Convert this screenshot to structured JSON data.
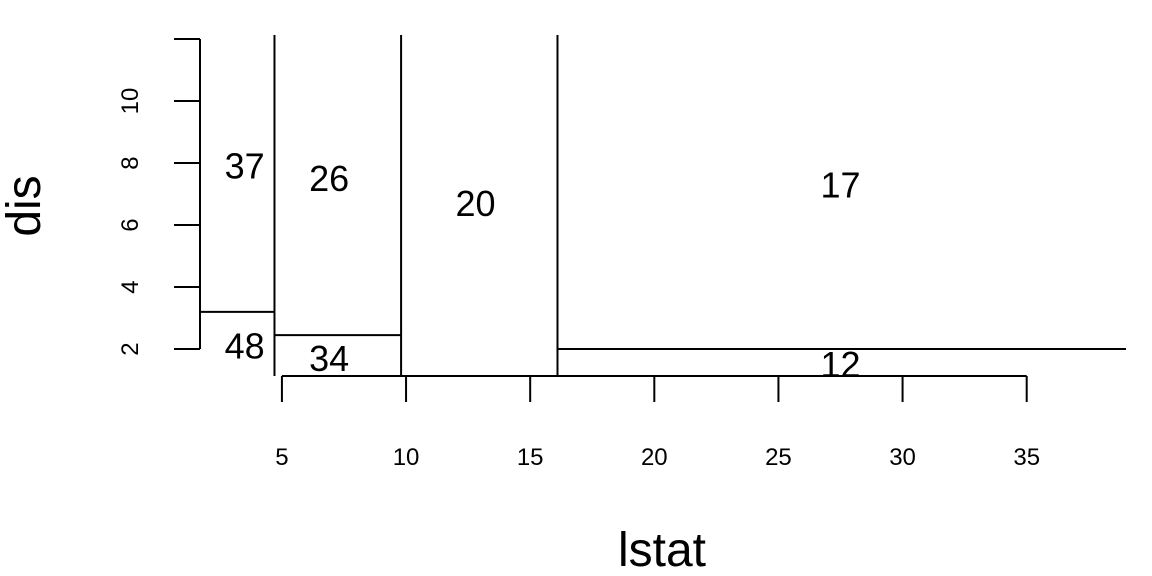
{
  "chart_data": {
    "type": "partition",
    "xlabel": "lstat",
    "ylabel": "dis",
    "xlim": [
      1.7,
      39.0
    ],
    "ylim": [
      1.13,
      12.13
    ],
    "x_ticks": [
      5,
      10,
      15,
      20,
      25,
      30,
      35
    ],
    "x_tick_labels": [
      "5",
      "10",
      "15",
      "20",
      "25",
      "30",
      "35"
    ],
    "y_ticks": [
      2,
      4,
      6,
      8,
      10,
      12
    ],
    "y_tick_labels": [
      "2",
      "4",
      "6",
      "8",
      "10",
      ""
    ],
    "vertical_splits": [
      {
        "x": 4.7,
        "y_from": 1.13,
        "y_to": 12.13
      },
      {
        "x": 9.8,
        "y_from": 1.13,
        "y_to": 12.13
      },
      {
        "x": 16.1,
        "y_from": 1.13,
        "y_to": 12.13
      }
    ],
    "horizontal_splits": [
      {
        "y": 3.2,
        "x_from": 1.7,
        "x_to": 4.7
      },
      {
        "y": 2.45,
        "x_from": 4.7,
        "x_to": 9.8
      },
      {
        "y": 2.0,
        "x_from": 16.1,
        "x_to": 39.0
      }
    ],
    "regions": [
      {
        "label": "37",
        "x": 3.5,
        "y": 7.8
      },
      {
        "label": "48",
        "x": 3.5,
        "y": 2.0
      },
      {
        "label": "26",
        "x": 6.9,
        "y": 7.4
      },
      {
        "label": "34",
        "x": 6.9,
        "y": 1.6
      },
      {
        "label": "20",
        "x": 12.8,
        "y": 6.6
      },
      {
        "label": "17",
        "x": 27.5,
        "y": 7.2
      },
      {
        "label": "12",
        "x": 27.5,
        "y": 1.4
      }
    ]
  }
}
